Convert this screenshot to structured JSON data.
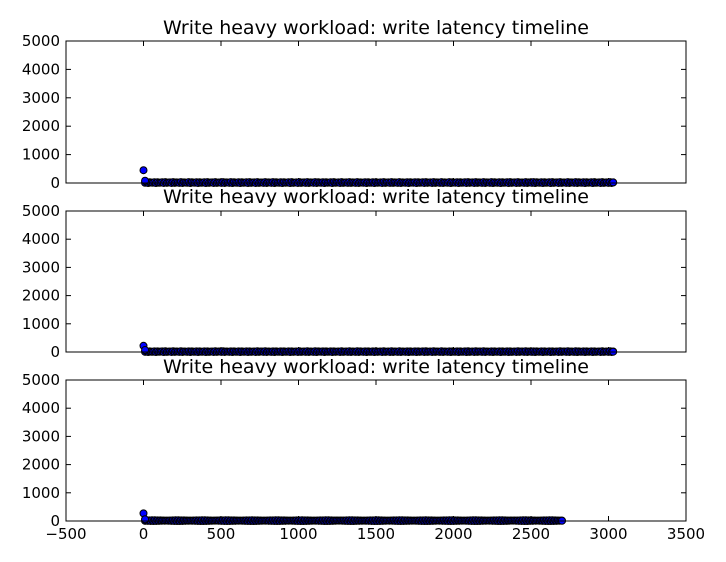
{
  "chart_data": [
    {
      "type": "scatter",
      "title": "Write heavy workload: write latency timeline",
      "xlim": [
        -500,
        3500
      ],
      "ylim": [
        0,
        5000
      ],
      "yticks": [
        "0",
        "1000",
        "2000",
        "3000",
        "4000",
        "5000"
      ],
      "show_xticklabels": false,
      "marker_color": "#0000ff",
      "series": [
        {
          "outliers": [
            {
              "x": 0,
              "y": 450
            },
            {
              "x": 10,
              "y": 80
            },
            {
              "x": 3030,
              "y": 20
            }
          ],
          "dense_band": {
            "x_start": 10,
            "x_end": 3030,
            "y_low": 0,
            "y_high": 30
          }
        }
      ]
    },
    {
      "type": "scatter",
      "title": "Write heavy workload: write latency timeline",
      "xlim": [
        -500,
        3500
      ],
      "ylim": [
        0,
        5000
      ],
      "yticks": [
        "0",
        "1000",
        "2000",
        "3000",
        "4000",
        "5000"
      ],
      "show_xticklabels": false,
      "marker_color": "#0000ff",
      "series": [
        {
          "outliers": [
            {
              "x": 0,
              "y": 220
            },
            {
              "x": 10,
              "y": 70
            },
            {
              "x": 3030,
              "y": 10
            }
          ],
          "dense_band": {
            "x_start": 10,
            "x_end": 3030,
            "y_low": 0,
            "y_high": 25
          }
        }
      ]
    },
    {
      "type": "scatter",
      "title": "Write heavy workload: write latency timeline",
      "xlim": [
        -500,
        3500
      ],
      "ylim": [
        0,
        5000
      ],
      "yticks": [
        "0",
        "1000",
        "2000",
        "3000",
        "4000",
        "5000"
      ],
      "xticks": [
        "−500",
        "0",
        "500",
        "1000",
        "1500",
        "2000",
        "2500",
        "3000",
        "3500"
      ],
      "show_xticklabels": true,
      "marker_color": "#0000ff",
      "series": [
        {
          "outliers": [
            {
              "x": 0,
              "y": 270
            },
            {
              "x": 10,
              "y": 60
            },
            {
              "x": 2700,
              "y": 10
            }
          ],
          "dense_band": {
            "x_start": 10,
            "x_end": 2700,
            "y_low": 0,
            "y_high": 25
          }
        }
      ]
    }
  ]
}
